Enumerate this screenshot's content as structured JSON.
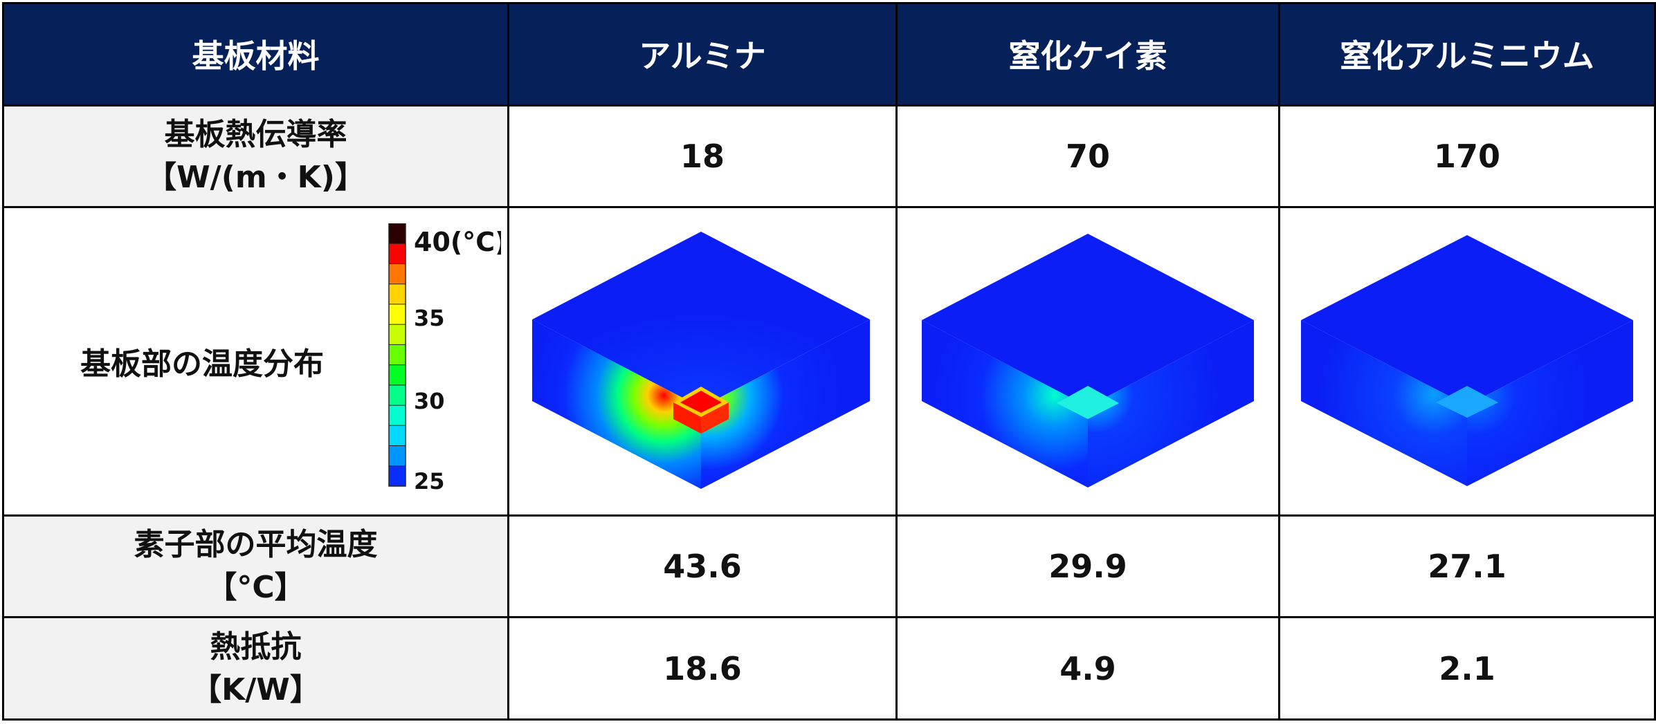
{
  "table": {
    "header": {
      "material": "基板材料",
      "alumina": "アルミナ",
      "silicon_nitride": "窒化ケイ素",
      "aluminum_nitride": "窒化アルミニウム"
    },
    "rows": {
      "conductivity": {
        "label_line1": "基板熱伝導率",
        "label_line2": "【W/(m・K)】",
        "values": [
          "18",
          "70",
          "170"
        ]
      },
      "distribution": {
        "label": "基板部の温度分布",
        "legend": {
          "unit": "40(°C)",
          "tick_35": "35",
          "tick_30": "30",
          "tick_25": "25",
          "colors": [
            "#2b0000",
            "#ff0000",
            "#ff7700",
            "#ffd400",
            "#ffff00",
            "#c7ff00",
            "#6aff00",
            "#00ff22",
            "#00ff88",
            "#00ffd0",
            "#00d8ff",
            "#0096ff",
            "#0a2dff"
          ]
        }
      },
      "element_temp": {
        "label_line1": "素子部の平均温度",
        "label_line2": "【°C】",
        "values": [
          "43.6",
          "29.9",
          "27.1"
        ]
      },
      "thermal_resistance": {
        "label_line1": "熱抵抗",
        "label_line2": "【K/W】",
        "values": [
          "18.6",
          "4.9",
          "2.1"
        ]
      }
    }
  }
}
